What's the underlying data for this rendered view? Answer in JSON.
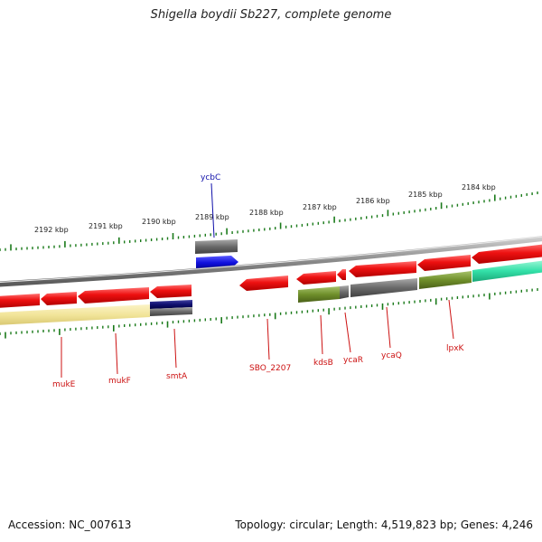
{
  "title": "Shigella boydii Sb227, complete genome",
  "footer": {
    "accession": "Accession: NC_007613",
    "topology": "Topology: circular; Length: 4,519,823 bp; Genes: 4,246"
  },
  "colors": {
    "gene_red": "#ee1111",
    "gene_blue": "#1010dd",
    "feature_gray": "#6a6a6a",
    "feature_olive": "#6f8f2a",
    "feature_teal": "#33e0a8",
    "feature_yellow": "#f2e59a",
    "feature_navy": "#101070",
    "backbone": "#8a8a8a",
    "tick_green": "#1a7a1a",
    "label_red": "#cc1111",
    "label_blue": "#1010aa"
  },
  "scale_labels": [
    "2192 kbp",
    "2191 kbp",
    "2190 kbp",
    "2189 kbp",
    "2188 kbp",
    "2187 kbp",
    "2186 kbp",
    "2185 kbp",
    "2184 kbp"
  ],
  "gene_labels": {
    "ycbC": "ycbC",
    "mukE": "mukE",
    "mukF": "mukF",
    "smtA": "smtA",
    "SBO_2207": "SBO_2207",
    "kdsB": "kdsB",
    "ycaR": "ycaR",
    "ycaQ": "ycaQ",
    "lpxK": "lpxK"
  }
}
